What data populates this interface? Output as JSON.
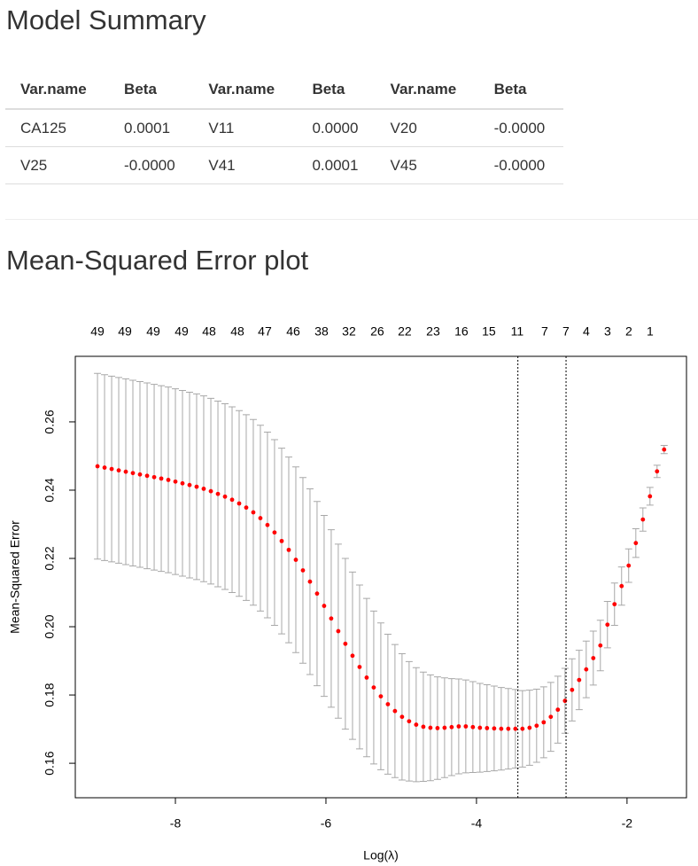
{
  "header": {
    "title": "Model Summary"
  },
  "table": {
    "columns": [
      "Var.name",
      "Beta",
      "Var.name",
      "Beta",
      "Var.name",
      "Beta"
    ],
    "rows": [
      [
        "CA125",
        "0.0001",
        "V11",
        "0.0000",
        "V20",
        "-0.0000"
      ],
      [
        "V25",
        "-0.0000",
        "V41",
        "0.0001",
        "V45",
        "-0.0000"
      ]
    ]
  },
  "section_title": "Mean-Squared Error plot",
  "chart_data": {
    "type": "errorbar",
    "xlabel": "Log(λ)",
    "ylabel": "Mean-Squared Error",
    "color": "#ff0000",
    "error_color": "#a8a8a8",
    "x": [
      -9.035,
      -8.941,
      -8.847,
      -8.753,
      -8.659,
      -8.565,
      -8.471,
      -8.376,
      -8.282,
      -8.188,
      -8.094,
      -8,
      -7.906,
      -7.812,
      -7.718,
      -7.624,
      -7.529,
      -7.435,
      -7.341,
      -7.247,
      -7.153,
      -7.059,
      -6.965,
      -6.871,
      -6.777,
      -6.683,
      -6.588,
      -6.494,
      -6.4,
      -6.306,
      -6.212,
      -6.118,
      -6.024,
      -5.93,
      -5.836,
      -5.742,
      -5.647,
      -5.553,
      -5.459,
      -5.365,
      -5.271,
      -5.177,
      -5.083,
      -4.989,
      -4.895,
      -4.801,
      -4.706,
      -4.612,
      -4.518,
      -4.424,
      -4.33,
      -4.236,
      -4.142,
      -4.048,
      -3.954,
      -3.86,
      -3.765,
      -3.671,
      -3.577,
      -3.483,
      -3.389,
      -3.295,
      -3.201,
      -3.107,
      -3.013,
      -2.919,
      -2.824,
      -2.73,
      -2.636,
      -2.542,
      -2.448,
      -2.354,
      -2.26,
      -2.166,
      -2.072,
      -1.978,
      -1.883,
      -1.789,
      -1.695,
      -1.601,
      -1.507
    ],
    "values": [
      0.247,
      0.2466,
      0.2462,
      0.2458,
      0.2454,
      0.245,
      0.2446,
      0.2442,
      0.2438,
      0.2434,
      0.243,
      0.2425,
      0.242,
      0.2415,
      0.241,
      0.2404,
      0.2397,
      0.2389,
      0.2381,
      0.2372,
      0.2361,
      0.2349,
      0.2335,
      0.2318,
      0.2298,
      0.2276,
      0.2251,
      0.2225,
      0.2196,
      0.2165,
      0.2132,
      0.2097,
      0.2061,
      0.2024,
      0.1987,
      0.195,
      0.1915,
      0.1882,
      0.1851,
      0.1822,
      0.1796,
      0.1773,
      0.1753,
      0.1736,
      0.1723,
      0.1713,
      0.1707,
      0.1704,
      0.1703,
      0.1704,
      0.1706,
      0.1708,
      0.1708,
      0.1706,
      0.1704,
      0.1703,
      0.1702,
      0.1701,
      0.1701,
      0.1701,
      0.1701,
      0.1704,
      0.171,
      0.172,
      0.1736,
      0.1757,
      0.1783,
      0.1815,
      0.1844,
      0.1875,
      0.1908,
      0.1945,
      0.2006,
      0.2066,
      0.2119,
      0.2179,
      0.2245,
      0.2314,
      0.2382,
      0.2455,
      0.2519
    ],
    "errors": [
      0.0272,
      0.0272,
      0.0272,
      0.0272,
      0.0272,
      0.0272,
      0.0272,
      0.0272,
      0.0272,
      0.0272,
      0.0272,
      0.0272,
      0.0272,
      0.0272,
      0.0272,
      0.0272,
      0.0272,
      0.0272,
      0.0272,
      0.0272,
      0.0272,
      0.0272,
      0.0272,
      0.0272,
      0.0272,
      0.0272,
      0.0272,
      0.0272,
      0.0272,
      0.0272,
      0.0272,
      0.027,
      0.0265,
      0.026,
      0.0255,
      0.025,
      0.0245,
      0.024,
      0.0232,
      0.0224,
      0.0215,
      0.0205,
      0.0195,
      0.0185,
      0.0175,
      0.0167,
      0.016,
      0.0155,
      0.015,
      0.0146,
      0.0142,
      0.0139,
      0.0136,
      0.0133,
      0.013,
      0.0127,
      0.0124,
      0.0121,
      0.0118,
      0.0115,
      0.0112,
      0.011,
      0.0107,
      0.0104,
      0.0101,
      0.0098,
      0.0095,
      0.0091,
      0.0087,
      0.0083,
      0.0079,
      0.0074,
      0.0068,
      0.0062,
      0.0056,
      0.0049,
      0.0042,
      0.0034,
      0.0026,
      0.0018,
      0.0012
    ],
    "xlim": [
      -9.33,
      -1.21
    ],
    "ylim": [
      0.1499,
      0.2792
    ],
    "xticks": [
      -8,
      -6,
      -4,
      -2
    ],
    "yticks": [
      0.16,
      0.18,
      {
        "value": 0.2,
        "label": "0.20"
      },
      0.22,
      0.24,
      0.26
    ],
    "nzero": {
      "x": [
        -9.035,
        -8.671,
        -8.294,
        -7.918,
        -7.553,
        -7.176,
        -6.812,
        -6.435,
        -6.059,
        -5.694,
        -5.318,
        -4.953,
        -4.576,
        -4.2,
        -3.835,
        -3.459,
        -3.094,
        -2.812,
        -2.541,
        -2.259,
        -1.976,
        -1.694
      ],
      "labels": [
        49,
        49,
        49,
        49,
        48,
        48,
        47,
        46,
        38,
        32,
        26,
        22,
        23,
        16,
        15,
        11,
        7,
        7,
        4,
        3,
        2,
        1
      ]
    },
    "vlines": [
      -3.45,
      -2.81
    ]
  }
}
